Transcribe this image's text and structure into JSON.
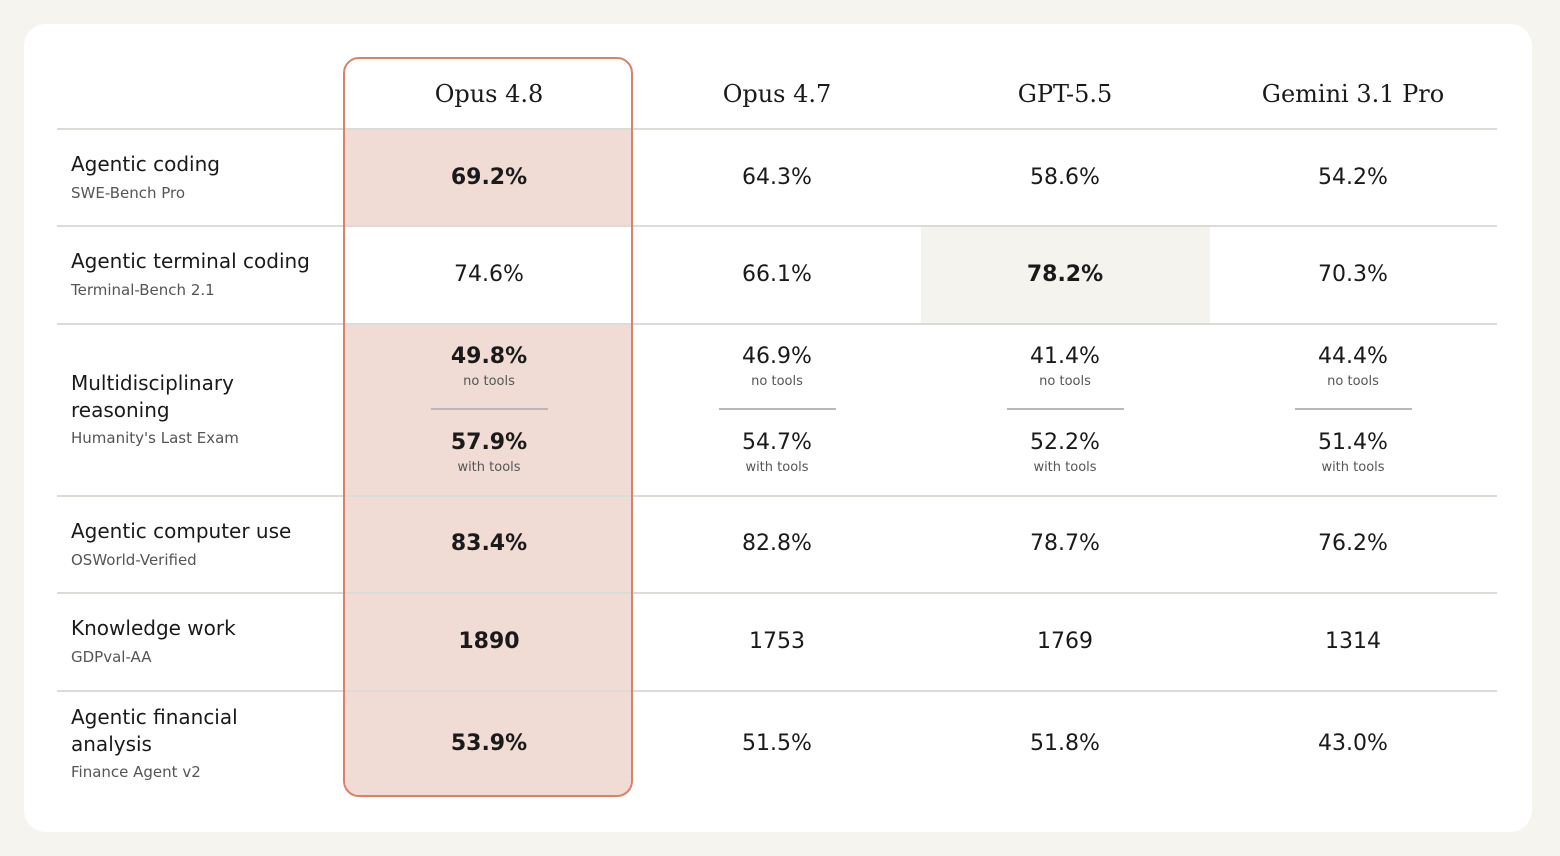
{
  "colors": {
    "page_background": "#f5f4ef",
    "card_background": "#ffffff",
    "highlight_fill": "#f0dcd5",
    "highlight_border": "#d9816b",
    "gpt_highlight_fill": "#f4f3ee",
    "rule": "#dcdbd6"
  },
  "chart_data": {
    "type": "table",
    "columns": [
      "Opus 4.8",
      "Opus 4.7",
      "GPT-5.5",
      "Gemini 3.1 Pro"
    ],
    "highlighted_column": "Opus 4.8",
    "rows": [
      {
        "label": "Agentic coding",
        "benchmark": "SWE-Bench Pro",
        "values": [
          "69.2%",
          "64.3%",
          "58.6%",
          "54.2%"
        ],
        "best": "Opus 4.8"
      },
      {
        "label": "Agentic terminal coding",
        "benchmark": "Terminal-Bench 2.1",
        "values": [
          "74.6%",
          "66.1%",
          "78.2%",
          "70.3%"
        ],
        "best": "GPT-5.5"
      },
      {
        "label": "Multidisciplinary reasoning",
        "label_lines": [
          "Multidisciplinary",
          "reasoning"
        ],
        "benchmark": "Humanity's Last Exam",
        "no_tools_note": "no tools",
        "with_tools_note": "with tools",
        "values_no_tools": [
          "49.8%",
          "46.9%",
          "41.4%",
          "44.4%"
        ],
        "values_with_tools": [
          "57.9%",
          "54.7%",
          "52.2%",
          "51.4%"
        ],
        "best": "Opus 4.8"
      },
      {
        "label": "Agentic computer use",
        "benchmark": "OSWorld-Verified",
        "values": [
          "83.4%",
          "82.8%",
          "78.7%",
          "76.2%"
        ],
        "best": "Opus 4.8"
      },
      {
        "label": "Knowledge work",
        "benchmark": "GDPval-AA",
        "values": [
          "1890",
          "1753",
          "1769",
          "1314"
        ],
        "best": "Opus 4.8"
      },
      {
        "label": "Agentic financial analysis",
        "label_lines": [
          "Agentic financial",
          "analysis"
        ],
        "benchmark": "Finance Agent v2",
        "values": [
          "53.9%",
          "51.5%",
          "51.8%",
          "43.0%"
        ],
        "best": "Opus 4.8"
      }
    ]
  }
}
